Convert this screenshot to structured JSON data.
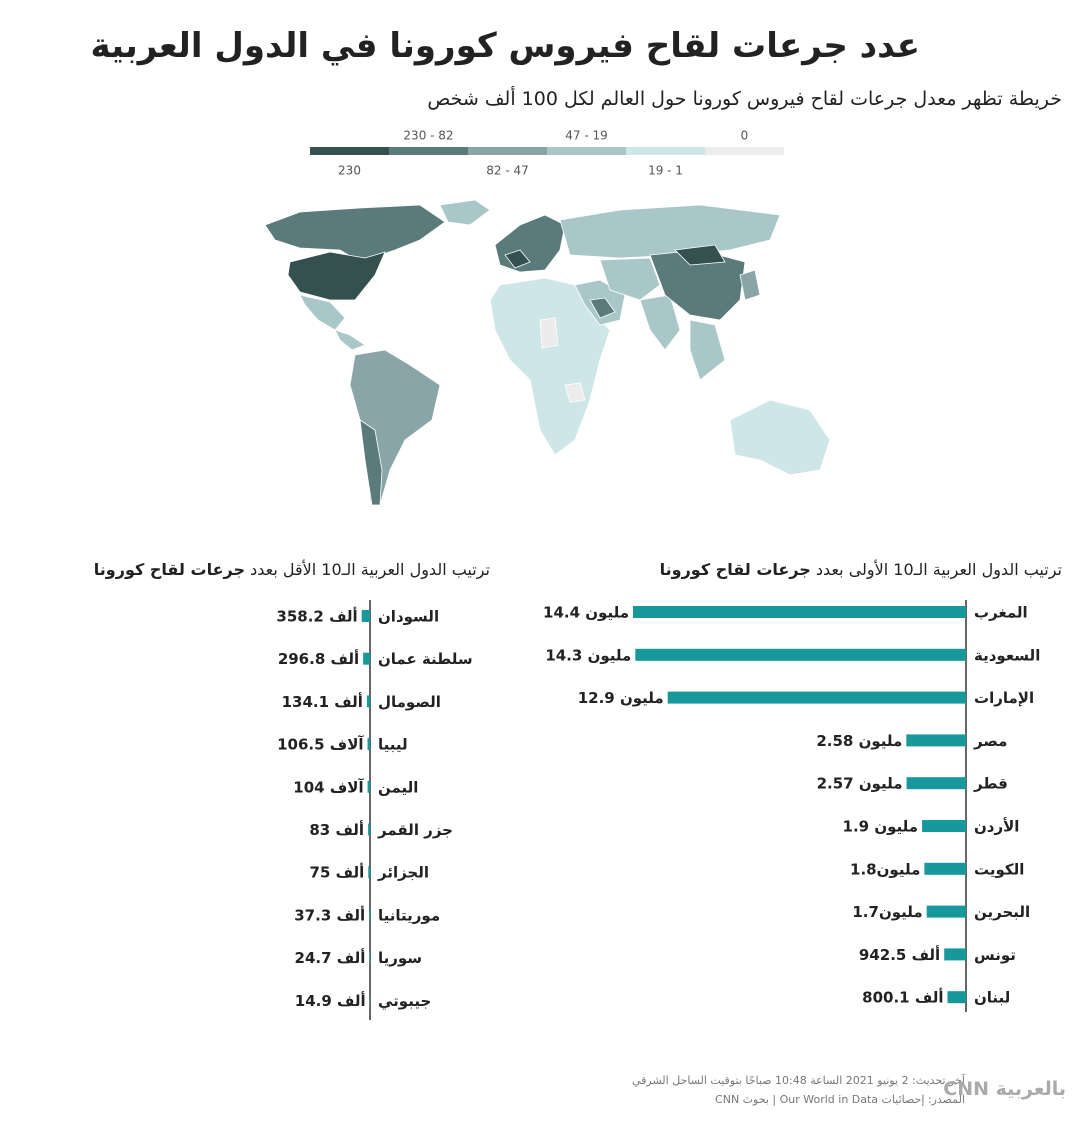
{
  "title": "عدد جرعات لقاح فيروس كورونا في الدول العربية",
  "subtitle": "خريطة تظهر معدل جرعات لقاح فيروس كورونا حول العالم  لكل 100 ألف شخص",
  "map_legend": [
    {
      "label": "230",
      "color": "#34504f"
    },
    {
      "label": "230 - 82",
      "color": "#5a7a7b"
    },
    {
      "label": "82 - 47",
      "color": "#8aa5a7"
    },
    {
      "label": "47 - 19",
      "color": "#a9c6c9"
    },
    {
      "label": "19 - 1",
      "color": "#cfe6e9"
    },
    {
      "label": "0",
      "color": "#ececec"
    }
  ],
  "chart_data": [
    {
      "type": "bar",
      "orientation": "horizontal",
      "title": "ترتيب الدول العربية الـ10 الأولى بعدد",
      "title_emphasis": "جرعات لقاح كورونا",
      "categories": [
        "المغرب",
        "السعودية",
        "الإمارات",
        "مصر",
        "قطر",
        "الأردن",
        "الكويت",
        "البحرين",
        "تونس",
        "لبنان"
      ],
      "values": [
        14400000,
        14300000,
        12900000,
        2580000,
        2570000,
        1900000,
        1800000,
        1700000,
        942500,
        800100
      ],
      "value_labels": [
        "14.4 مليون",
        "14.3 مليون",
        "12.9 مليون",
        "2.58 مليون",
        "2.57 مليون",
        "1.9 مليون",
        "1.8مليون",
        "1.7مليون",
        "942.5 ألف",
        "800.1 ألف"
      ],
      "color": "#17999b"
    },
    {
      "type": "bar",
      "orientation": "horizontal",
      "title": "ترتيب الدول العربية الـ10 الأقل بعدد",
      "title_emphasis": "جرعات لقاح كورونا",
      "categories": [
        "السودان",
        "سلطنة عمان",
        "الصومال",
        "ليبيا",
        "اليمن",
        "جزر القمر",
        "الجزائر",
        "موريتانيا",
        "سوريا",
        "جيبوتي"
      ],
      "values": [
        358200,
        296800,
        134100,
        106500,
        104000,
        83000,
        75000,
        37300,
        24700,
        14900
      ],
      "value_labels": [
        "358.2 ألف",
        "296.8 ألف",
        "134.1 ألف",
        "106.5 آلاف",
        "104 آلاف",
        "83 ألف",
        "75 ألف",
        "37.3 ألف",
        "24.7 ألف",
        "14.9 ألف"
      ],
      "color": "#17999b"
    }
  ],
  "footer": {
    "updated": "آخر تحديث: 2 يونيو 2021 الساعة 10:48 صباحًا بتوقيت الساحل الشرقي",
    "source": "المصدر: إحصائيات Our World in Data | بحوث CNN",
    "logo": "CNN بالعربية"
  }
}
